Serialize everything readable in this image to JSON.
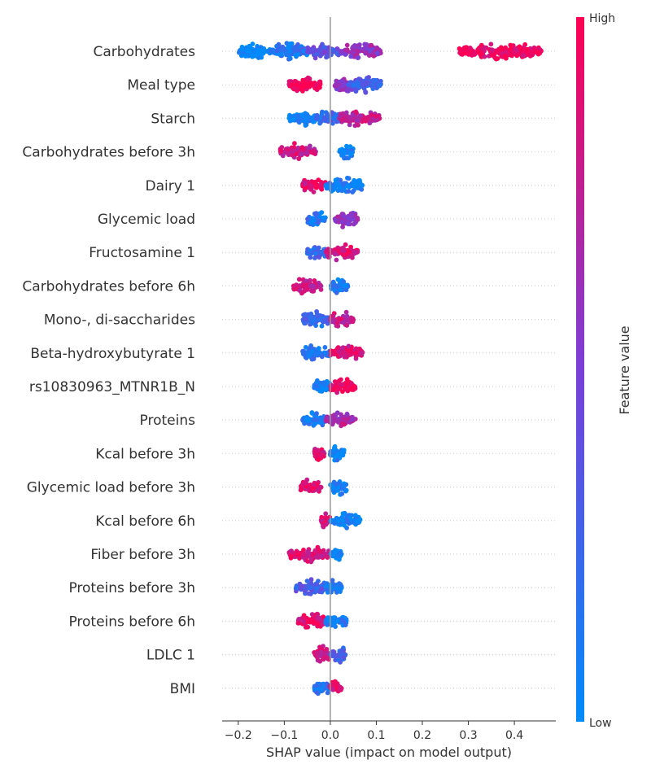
{
  "chart_data": {
    "type": "scatter",
    "subtype": "shap-beeswarm",
    "xlabel": "SHAP value (impact on model output)",
    "xlim": [
      -0.235,
      0.49
    ],
    "xticks": [
      -0.2,
      -0.1,
      0.0,
      0.1,
      0.2,
      0.3,
      0.4
    ],
    "xtick_labels": [
      "−0.2",
      "−0.1",
      "0.0",
      "0.1",
      "0.2",
      "0.3",
      "0.4"
    ],
    "colorbar": {
      "title": "Feature value",
      "high_label": "High",
      "low_label": "Low",
      "low_color": "#008bfb",
      "mid_color": "#7a3fd8",
      "high_color": "#ff0052"
    },
    "features": [
      {
        "name": "Carbohydrates",
        "clusters": [
          [
            -0.2,
            -0.13,
            0.0
          ],
          [
            -0.13,
            -0.05,
            0.15
          ],
          [
            -0.05,
            0.02,
            0.4
          ],
          [
            0.02,
            0.11,
            0.6
          ],
          [
            0.28,
            0.46,
            0.95
          ]
        ]
      },
      {
        "name": "Meal type",
        "clusters": [
          [
            -0.09,
            -0.02,
            1.0
          ],
          [
            0.01,
            0.06,
            0.55
          ],
          [
            0.04,
            0.11,
            0.25
          ]
        ]
      },
      {
        "name": "Starch",
        "clusters": [
          [
            -0.09,
            -0.03,
            0.05
          ],
          [
            -0.03,
            0.02,
            0.25
          ],
          [
            0.02,
            0.11,
            0.75
          ]
        ]
      },
      {
        "name": "Carbohydrates before 3h",
        "clusters": [
          [
            -0.11,
            -0.03,
            0.8
          ],
          [
            0.02,
            0.05,
            0.05
          ]
        ]
      },
      {
        "name": "Dairy 1",
        "clusters": [
          [
            -0.06,
            -0.01,
            0.9
          ],
          [
            -0.01,
            0.07,
            0.1
          ]
        ]
      },
      {
        "name": "Glycemic load",
        "clusters": [
          [
            -0.05,
            -0.01,
            0.15
          ],
          [
            0.01,
            0.06,
            0.6
          ]
        ]
      },
      {
        "name": "Fructosamine 1",
        "clusters": [
          [
            -0.05,
            -0.01,
            0.25
          ],
          [
            -0.01,
            0.06,
            0.85
          ]
        ]
      },
      {
        "name": "Carbohydrates before 6h",
        "clusters": [
          [
            -0.08,
            -0.02,
            0.8
          ],
          [
            0.0,
            0.04,
            0.1
          ]
        ]
      },
      {
        "name": "Mono-, di-saccharides",
        "clusters": [
          [
            -0.06,
            0.0,
            0.2
          ],
          [
            0.0,
            0.05,
            0.8
          ]
        ]
      },
      {
        "name": "Beta-hydroxybutyrate 1",
        "clusters": [
          [
            -0.06,
            0.0,
            0.15
          ],
          [
            0.0,
            0.07,
            0.85
          ]
        ]
      },
      {
        "name": "rs10830963_MTNR1B_N",
        "clusters": [
          [
            -0.035,
            0.0,
            0.05
          ],
          [
            0.0,
            0.055,
            0.95
          ]
        ]
      },
      {
        "name": "Proteins",
        "clusters": [
          [
            -0.06,
            -0.01,
            0.1
          ],
          [
            -0.01,
            0.055,
            0.7
          ]
        ]
      },
      {
        "name": "Kcal before 3h",
        "clusters": [
          [
            -0.035,
            -0.01,
            0.9
          ],
          [
            0.0,
            0.03,
            0.05
          ]
        ]
      },
      {
        "name": "Glycemic load before 3h",
        "clusters": [
          [
            -0.065,
            -0.02,
            0.9
          ],
          [
            0.0,
            0.035,
            0.05
          ]
        ]
      },
      {
        "name": "Kcal before 6h",
        "clusters": [
          [
            -0.02,
            0.0,
            0.85
          ],
          [
            0.0,
            0.065,
            0.05
          ]
        ]
      },
      {
        "name": "Fiber before 3h",
        "clusters": [
          [
            -0.09,
            0.0,
            0.85
          ],
          [
            0.0,
            0.025,
            0.05
          ]
        ]
      },
      {
        "name": "Proteins before 3h",
        "clusters": [
          [
            -0.075,
            -0.01,
            0.3
          ],
          [
            -0.01,
            0.025,
            0.1
          ]
        ]
      },
      {
        "name": "Proteins before 6h",
        "clusters": [
          [
            -0.07,
            -0.01,
            0.9
          ],
          [
            -0.01,
            0.035,
            0.1
          ]
        ]
      },
      {
        "name": "LDLC 1",
        "clusters": [
          [
            -0.035,
            0.0,
            0.85
          ],
          [
            0.0,
            0.035,
            0.3
          ]
        ]
      },
      {
        "name": "BMI",
        "clusters": [
          [
            -0.035,
            0.0,
            0.15
          ],
          [
            0.0,
            0.025,
            0.9
          ]
        ]
      }
    ]
  }
}
